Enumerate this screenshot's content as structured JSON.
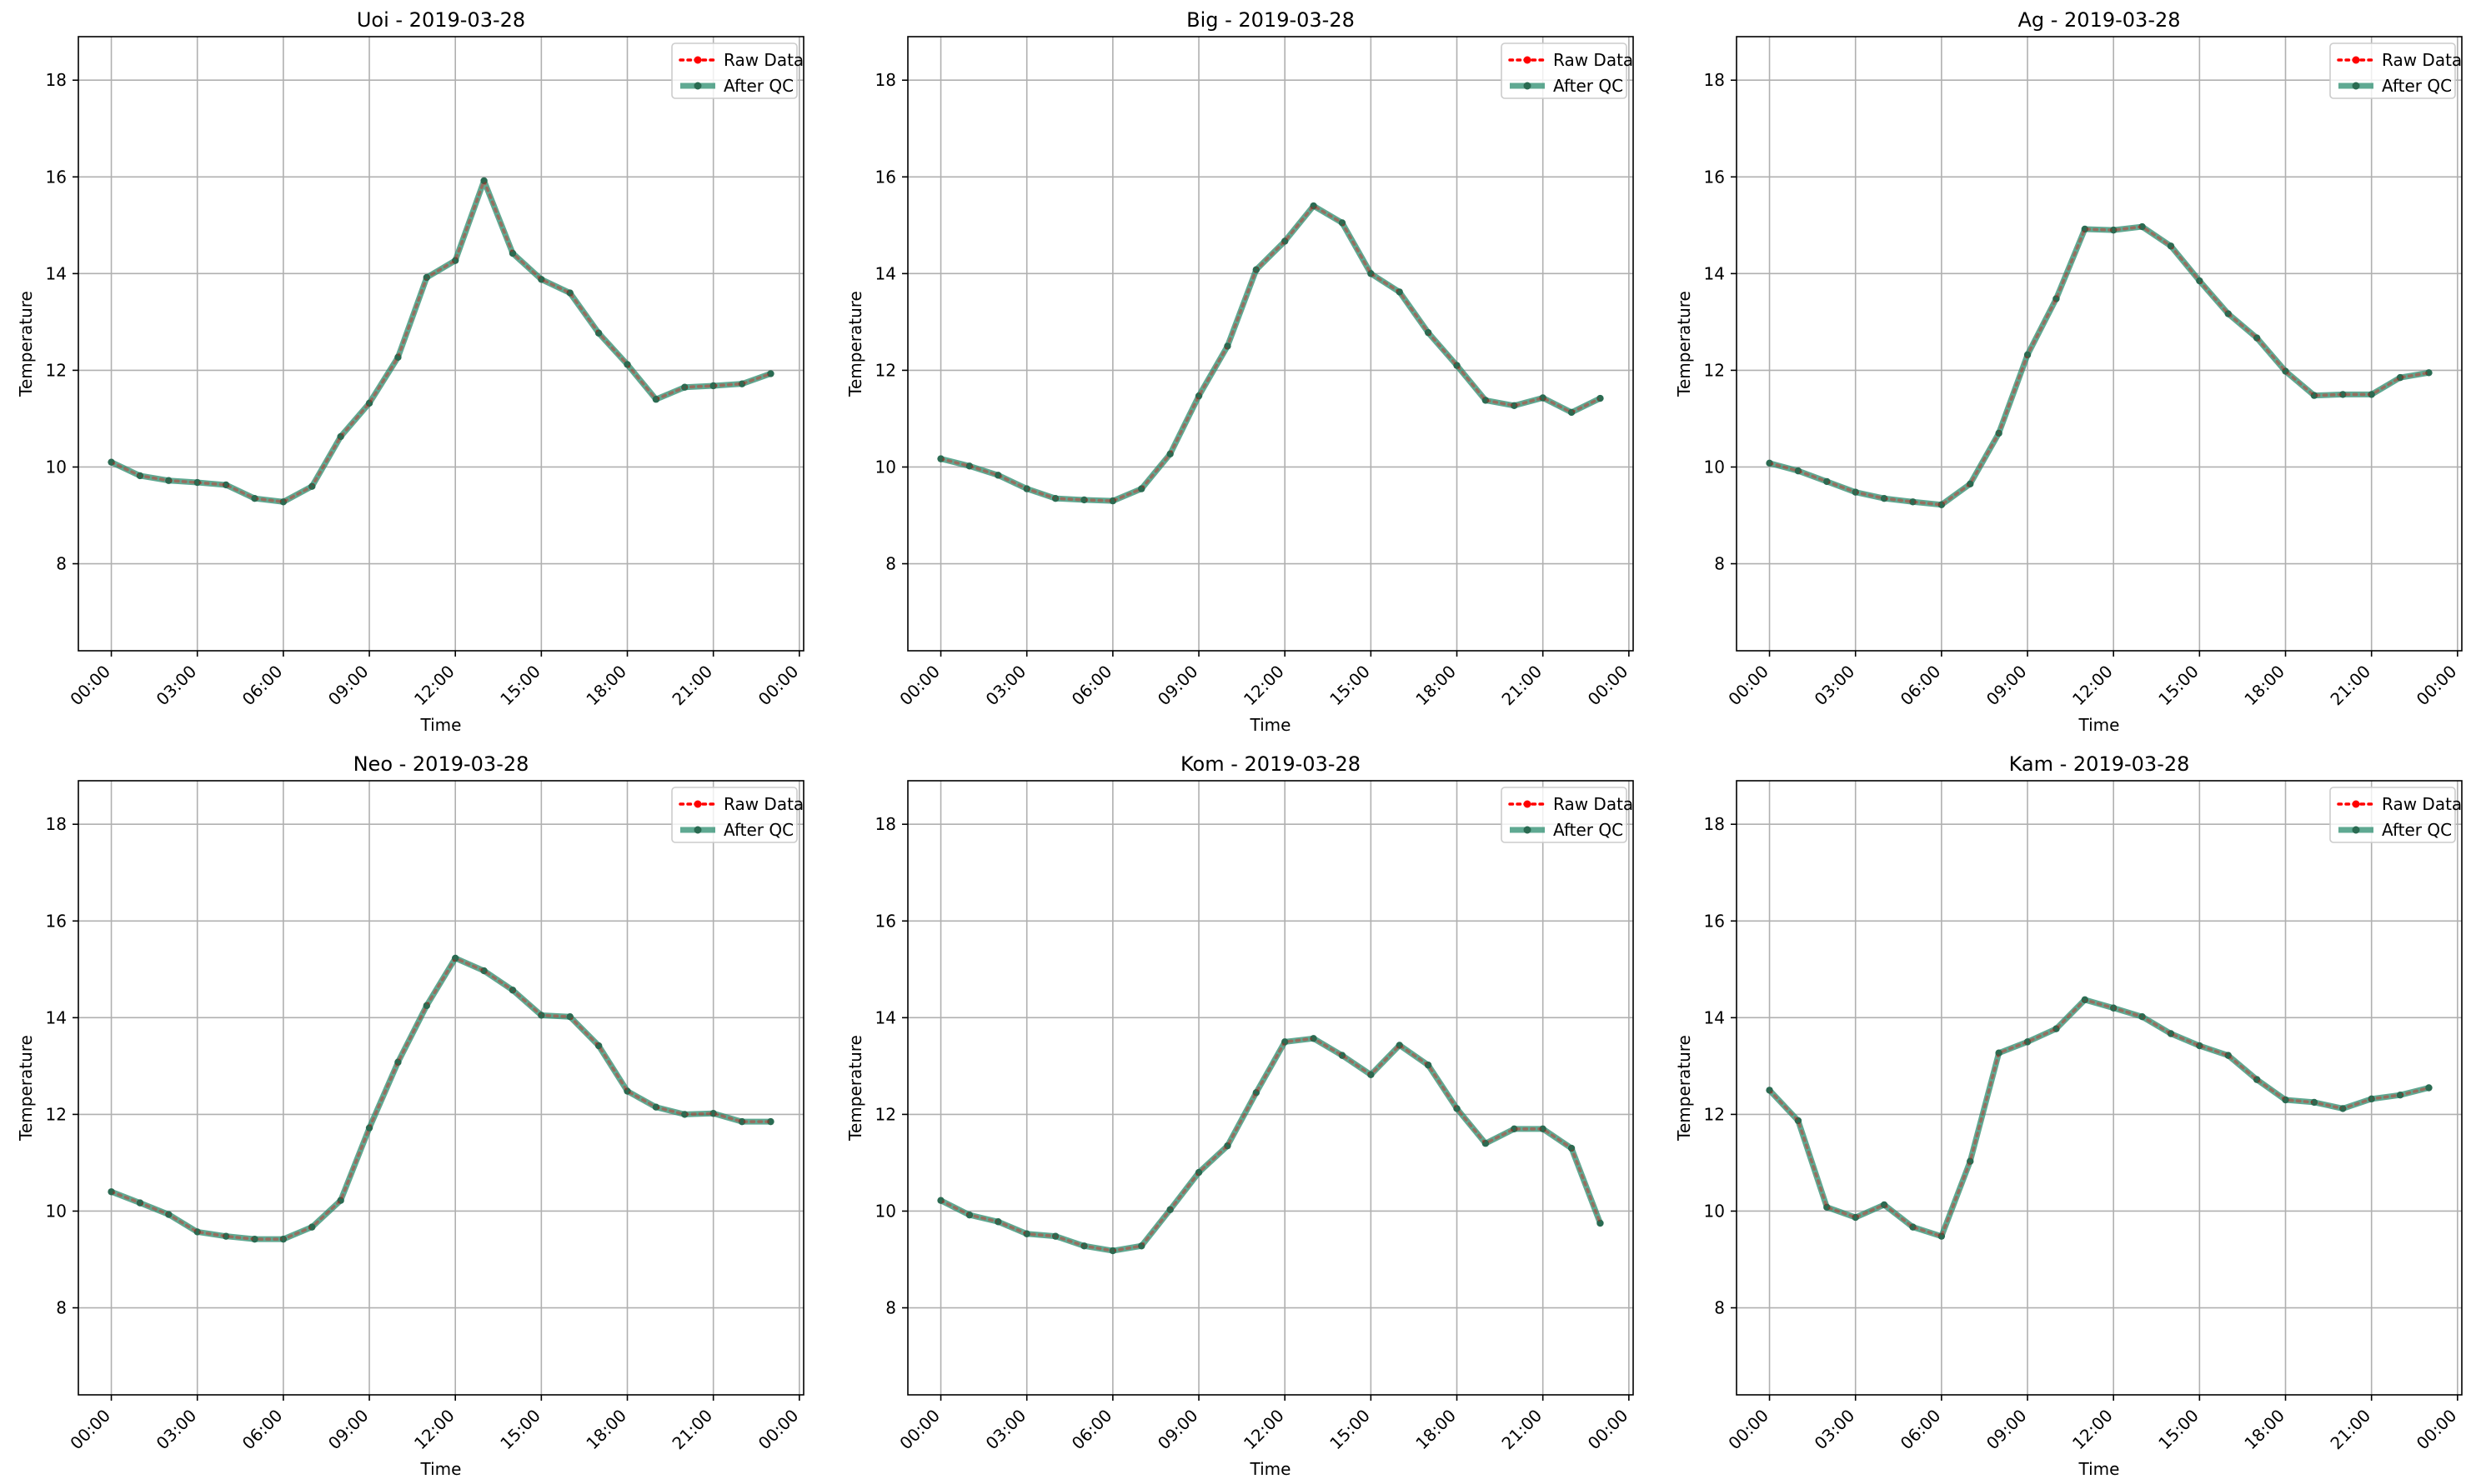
{
  "figure": {
    "colors": {
      "raw": "#ff0000",
      "qc": "#2a8c6e",
      "qc_marker": "#2a6b52"
    }
  },
  "chart_data": [
    {
      "type": "line",
      "title": "Uoi - 2019-03-28",
      "xlabel": "Time",
      "ylabel": "Temperature",
      "x_hours": [
        0,
        1,
        2,
        3,
        4,
        5,
        6,
        7,
        8,
        9,
        10,
        11,
        12,
        13,
        14,
        15,
        16,
        17,
        18,
        19,
        20,
        21,
        22,
        23
      ],
      "xticks": [
        "00:00",
        "03:00",
        "06:00",
        "09:00",
        "12:00",
        "15:00",
        "18:00",
        "21:00",
        "00:00"
      ],
      "yticks": [
        "8",
        "10",
        "12",
        "14",
        "16",
        "18"
      ],
      "xlim": [
        -1.15,
        24.15
      ],
      "ylim": [
        6.2,
        18.9
      ],
      "grid": true,
      "legend": {
        "position": "top-right",
        "raw_label": "Raw Data",
        "qc_label": "After QC"
      },
      "series": [
        {
          "name": "Raw Data",
          "values": [
            10.1,
            9.82,
            9.72,
            9.68,
            9.63,
            9.35,
            9.28,
            9.6,
            10.63,
            11.32,
            12.27,
            13.92,
            14.27,
            15.92,
            14.42,
            13.88,
            13.6,
            12.77,
            12.12,
            11.4,
            11.65,
            11.68,
            11.72,
            11.93
          ]
        },
        {
          "name": "After QC",
          "values": [
            10.1,
            9.82,
            9.72,
            9.68,
            9.63,
            9.35,
            9.28,
            9.6,
            10.63,
            11.32,
            12.27,
            13.92,
            14.27,
            15.92,
            14.42,
            13.88,
            13.6,
            12.77,
            12.12,
            11.4,
            11.65,
            11.68,
            11.72,
            11.93
          ]
        }
      ]
    },
    {
      "type": "line",
      "title": "Big - 2019-03-28",
      "xlabel": "Time",
      "ylabel": "Temperature",
      "x_hours": [
        0,
        1,
        2,
        3,
        4,
        5,
        6,
        7,
        8,
        9,
        10,
        11,
        12,
        13,
        14,
        15,
        16,
        17,
        18,
        19,
        20,
        21,
        22,
        23
      ],
      "xticks": [
        "00:00",
        "03:00",
        "06:00",
        "09:00",
        "12:00",
        "15:00",
        "18:00",
        "21:00",
        "00:00"
      ],
      "yticks": [
        "8",
        "10",
        "12",
        "14",
        "16",
        "18"
      ],
      "xlim": [
        -1.15,
        24.15
      ],
      "ylim": [
        6.2,
        18.9
      ],
      "grid": true,
      "legend": {
        "position": "top-right",
        "raw_label": "Raw Data",
        "qc_label": "After QC"
      },
      "series": [
        {
          "name": "Raw Data",
          "values": [
            10.17,
            10.02,
            9.83,
            9.55,
            9.35,
            9.32,
            9.3,
            9.55,
            10.27,
            11.47,
            12.5,
            14.08,
            14.67,
            15.4,
            15.05,
            14.0,
            13.62,
            12.78,
            12.1,
            11.38,
            11.27,
            11.43,
            11.13,
            11.42
          ]
        },
        {
          "name": "After QC",
          "values": [
            10.17,
            10.02,
            9.83,
            9.55,
            9.35,
            9.32,
            9.3,
            9.55,
            10.27,
            11.47,
            12.5,
            14.08,
            14.67,
            15.4,
            15.05,
            14.0,
            13.62,
            12.78,
            12.1,
            11.38,
            11.27,
            11.43,
            11.13,
            11.42
          ]
        }
      ]
    },
    {
      "type": "line",
      "title": "Ag - 2019-03-28",
      "xlabel": "Time",
      "ylabel": "Temperature",
      "x_hours": [
        0,
        1,
        2,
        3,
        4,
        5,
        6,
        7,
        8,
        9,
        10,
        11,
        12,
        13,
        14,
        15,
        16,
        17,
        18,
        19,
        20,
        21,
        22,
        23
      ],
      "xticks": [
        "00:00",
        "03:00",
        "06:00",
        "09:00",
        "12:00",
        "15:00",
        "18:00",
        "21:00",
        "00:00"
      ],
      "yticks": [
        "8",
        "10",
        "12",
        "14",
        "16",
        "18"
      ],
      "xlim": [
        -1.15,
        24.15
      ],
      "ylim": [
        6.2,
        18.9
      ],
      "grid": true,
      "legend": {
        "position": "top-right",
        "raw_label": "Raw Data",
        "qc_label": "After QC"
      },
      "series": [
        {
          "name": "Raw Data",
          "values": [
            10.08,
            9.92,
            9.7,
            9.48,
            9.35,
            9.28,
            9.22,
            9.65,
            10.7,
            12.32,
            13.48,
            14.92,
            14.9,
            14.97,
            14.57,
            13.85,
            13.17,
            12.67,
            11.98,
            11.48,
            11.5,
            11.5,
            11.85,
            11.95
          ]
        },
        {
          "name": "After QC",
          "values": [
            10.08,
            9.92,
            9.7,
            9.48,
            9.35,
            9.28,
            9.22,
            9.65,
            10.7,
            12.32,
            13.48,
            14.92,
            14.9,
            14.97,
            14.57,
            13.85,
            13.17,
            12.67,
            11.98,
            11.48,
            11.5,
            11.5,
            11.85,
            11.95
          ]
        }
      ]
    },
    {
      "type": "line",
      "title": "Neo - 2019-03-28",
      "xlabel": "Time",
      "ylabel": "Temperature",
      "x_hours": [
        0,
        1,
        2,
        3,
        4,
        5,
        6,
        7,
        8,
        9,
        10,
        11,
        12,
        13,
        14,
        15,
        16,
        17,
        18,
        19,
        20,
        21,
        22,
        23
      ],
      "xticks": [
        "00:00",
        "03:00",
        "06:00",
        "09:00",
        "12:00",
        "15:00",
        "18:00",
        "21:00",
        "00:00"
      ],
      "yticks": [
        "8",
        "10",
        "12",
        "14",
        "16",
        "18"
      ],
      "xlim": [
        -1.15,
        24.15
      ],
      "ylim": [
        6.2,
        18.9
      ],
      "grid": true,
      "legend": {
        "position": "top-right",
        "raw_label": "Raw Data",
        "qc_label": "After QC"
      },
      "series": [
        {
          "name": "Raw Data",
          "values": [
            10.4,
            10.17,
            9.93,
            9.57,
            9.48,
            9.42,
            9.42,
            9.67,
            10.22,
            11.72,
            13.08,
            14.25,
            15.23,
            14.97,
            14.57,
            14.05,
            14.02,
            13.42,
            12.48,
            12.15,
            12.0,
            12.02,
            11.85,
            11.85
          ]
        },
        {
          "name": "After QC",
          "values": [
            10.4,
            10.17,
            9.93,
            9.57,
            9.48,
            9.42,
            9.42,
            9.67,
            10.22,
            11.72,
            13.08,
            14.25,
            15.23,
            14.97,
            14.57,
            14.05,
            14.02,
            13.42,
            12.48,
            12.15,
            12.0,
            12.02,
            11.85,
            11.85
          ]
        }
      ]
    },
    {
      "type": "line",
      "title": "Kom - 2019-03-28",
      "xlabel": "Time",
      "ylabel": "Temperature",
      "x_hours": [
        0,
        1,
        2,
        3,
        4,
        5,
        6,
        7,
        8,
        9,
        10,
        11,
        12,
        13,
        14,
        15,
        16,
        17,
        18,
        19,
        20,
        21,
        22,
        23
      ],
      "xticks": [
        "00:00",
        "03:00",
        "06:00",
        "09:00",
        "12:00",
        "15:00",
        "18:00",
        "21:00",
        "00:00"
      ],
      "yticks": [
        "8",
        "10",
        "12",
        "14",
        "16",
        "18"
      ],
      "xlim": [
        -1.15,
        24.15
      ],
      "ylim": [
        6.2,
        18.9
      ],
      "grid": true,
      "legend": {
        "position": "top-right",
        "raw_label": "Raw Data",
        "qc_label": "After QC"
      },
      "series": [
        {
          "name": "Raw Data",
          "values": [
            10.22,
            9.92,
            9.78,
            9.53,
            9.48,
            9.28,
            9.18,
            9.28,
            10.03,
            10.8,
            11.35,
            12.45,
            13.5,
            13.57,
            13.22,
            12.82,
            13.43,
            13.02,
            12.12,
            11.4,
            11.7,
            11.7,
            11.3,
            9.75
          ]
        },
        {
          "name": "After QC",
          "values": [
            10.22,
            9.92,
            9.78,
            9.53,
            9.48,
            9.28,
            9.18,
            9.28,
            10.03,
            10.8,
            11.35,
            12.45,
            13.5,
            13.57,
            13.22,
            12.82,
            13.43,
            13.02,
            12.12,
            11.4,
            11.7,
            11.7,
            11.3,
            9.75
          ]
        }
      ]
    },
    {
      "type": "line",
      "title": "Kam - 2019-03-28",
      "xlabel": "Time",
      "ylabel": "Temperature",
      "x_hours": [
        0,
        1,
        2,
        3,
        4,
        5,
        6,
        7,
        8,
        9,
        10,
        11,
        12,
        13,
        14,
        15,
        16,
        17,
        18,
        19,
        20,
        21,
        22,
        23
      ],
      "xticks": [
        "00:00",
        "03:00",
        "06:00",
        "09:00",
        "12:00",
        "15:00",
        "18:00",
        "21:00",
        "00:00"
      ],
      "yticks": [
        "8",
        "10",
        "12",
        "14",
        "16",
        "18"
      ],
      "xlim": [
        -1.15,
        24.15
      ],
      "ylim": [
        6.2,
        18.9
      ],
      "grid": true,
      "legend": {
        "position": "top-right",
        "raw_label": "Raw Data",
        "qc_label": "After QC"
      },
      "series": [
        {
          "name": "Raw Data",
          "values": [
            12.5,
            11.87,
            10.08,
            9.87,
            10.13,
            9.67,
            9.48,
            11.03,
            13.27,
            13.5,
            13.77,
            14.37,
            14.2,
            14.02,
            13.67,
            13.42,
            13.22,
            12.72,
            12.3,
            12.25,
            12.12,
            12.32,
            12.4,
            12.55
          ]
        },
        {
          "name": "After QC",
          "values": [
            12.5,
            11.87,
            10.08,
            9.87,
            10.13,
            9.67,
            9.48,
            11.03,
            13.27,
            13.5,
            13.77,
            14.37,
            14.2,
            14.02,
            13.67,
            13.42,
            13.22,
            12.72,
            12.3,
            12.25,
            12.12,
            12.32,
            12.4,
            12.55
          ]
        }
      ]
    }
  ]
}
